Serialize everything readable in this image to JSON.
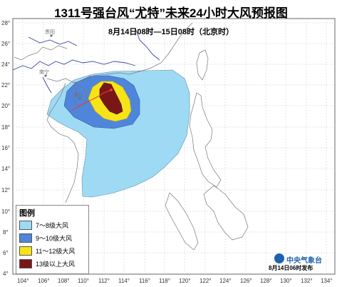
{
  "title": "1311号强台风“尤特”未来24小时大风预报图",
  "subtitle": "8月14日08时—15日08时（北京时）",
  "axes": {
    "lon_labels": [
      "104°",
      "106°",
      "108°",
      "110°",
      "112°",
      "114°",
      "116°",
      "118°",
      "120°",
      "122°",
      "124°",
      "126°",
      "128°",
      "130°",
      "132°",
      "134°"
    ],
    "lat_labels": [
      "28°",
      "26°",
      "24°",
      "22°",
      "20°",
      "18°",
      "16°",
      "14°",
      "12°",
      "10°",
      "8°",
      "6°",
      "4°"
    ]
  },
  "cities": [
    {
      "name": "贵阳",
      "id": "guiyang"
    },
    {
      "name": "南宁",
      "id": "nanning"
    },
    {
      "name": "海口",
      "id": "haikou"
    }
  ],
  "legend": {
    "title": "图例",
    "items": [
      {
        "label": "7～8级大风",
        "color": "#9fdaf5"
      },
      {
        "label": "9～10级大风",
        "color": "#4f86dc"
      },
      {
        "label": "11～12级大风",
        "color": "#f6e418"
      },
      {
        "label": "13级以上大风",
        "color": "#7b1616"
      }
    ]
  },
  "colors": {
    "sea": "#ffffff",
    "land_border": "#3c43a3",
    "coast": "#777777",
    "grid": "#c8c8c8"
  },
  "logo": {
    "text": "中央气象台",
    "icon": "cma-logo-icon"
  },
  "issue_time": "8月14日06时发布"
}
